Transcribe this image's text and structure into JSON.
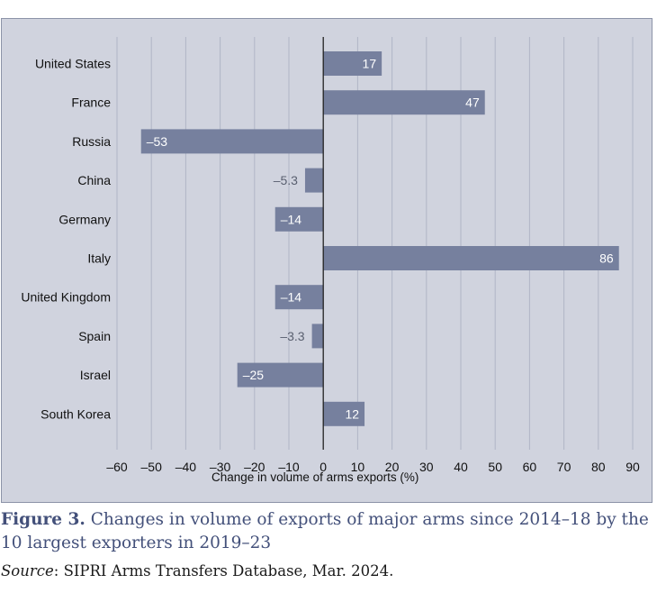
{
  "chart_data": {
    "type": "bar",
    "orientation": "horizontal",
    "categories": [
      "United States",
      "France",
      "Russia",
      "China",
      "Germany",
      "Italy",
      "United Kingdom",
      "Spain",
      "Israel",
      "South Korea"
    ],
    "values": [
      17,
      47,
      -53,
      -5.3,
      -14,
      86,
      -14,
      -3.3,
      -25,
      12
    ],
    "value_labels": [
      "17",
      "47",
      "–53",
      "–5.3",
      "–14",
      "86",
      "–14",
      "–3.3",
      "–25",
      "12"
    ],
    "xlabel": "Change in volume of arms exports (%)",
    "xlim": [
      -60,
      90
    ],
    "xticks": [
      -60,
      -50,
      -40,
      -30,
      -20,
      -10,
      0,
      10,
      20,
      30,
      40,
      50,
      60,
      70,
      80,
      90
    ],
    "xtick_labels": [
      "–60",
      "–50",
      "–40",
      "–30",
      "–20",
      "–10",
      "0",
      "10",
      "20",
      "30",
      "40",
      "50",
      "60",
      "70",
      "80",
      "90"
    ],
    "grid": true,
    "colors": {
      "bar": "#76809e",
      "panel": "#d0d3de",
      "grid": "#b0b5c6",
      "label_inside": "#ffffff",
      "label_outside": "#5a6070"
    }
  },
  "caption": {
    "figure_label": "Figure 3.",
    "text": "Changes in volume of exports of major arms since 2014–18 by the 10 largest exporters in 2019–23"
  },
  "source": {
    "label": "Source",
    "text": ": SIPRI Arms Transfers Database, Mar. 2024."
  }
}
